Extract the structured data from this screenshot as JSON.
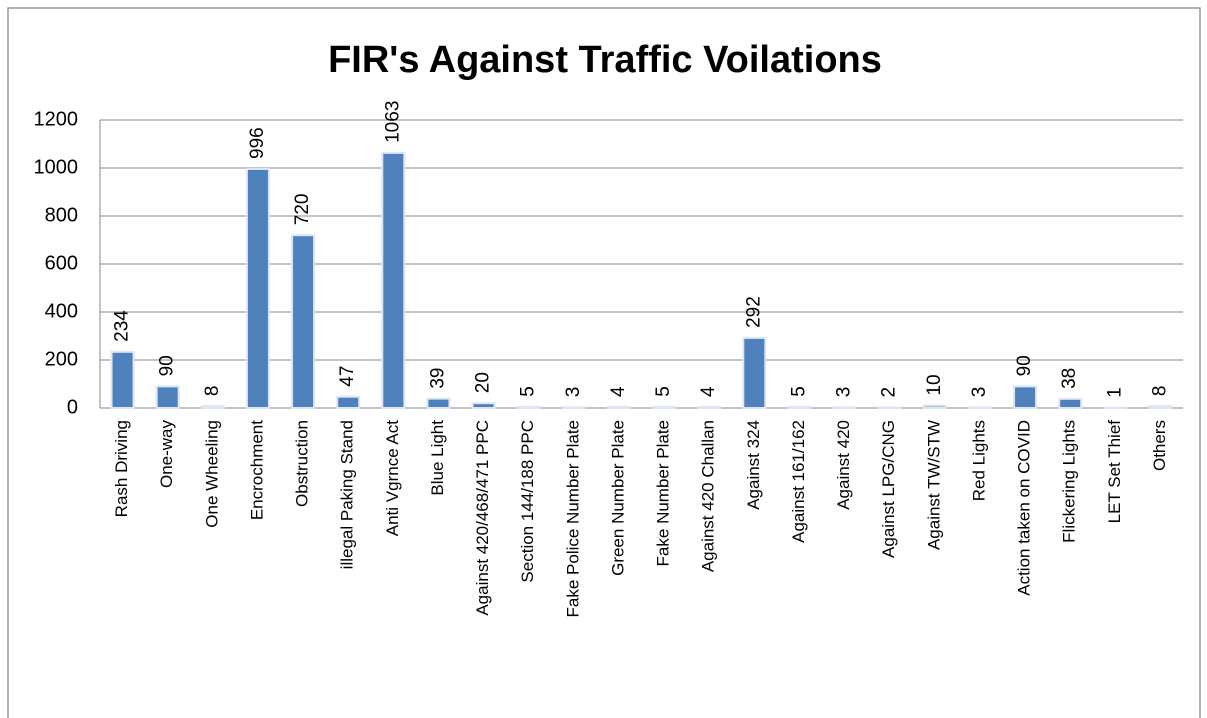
{
  "chart_data": {
    "type": "bar",
    "title": "FIR's Against Traffic Voilations",
    "categories": [
      "Rash Driving",
      "One-way",
      "One Wheeling",
      "Encrochment",
      "Obstruction",
      "illegal Paking Stand",
      "Anti Vgrnce Act",
      "Blue Light",
      "Against 420/468/471 PPC",
      "Section 144/188 PPC",
      "Fake Police Number Plate",
      "Green Number Plate",
      "Fake Number Plate",
      "Against 420 Challan",
      "Against 324",
      "Against 161/162",
      "Against 420",
      "Against LPG/CNG",
      "Against TW/STW",
      "Red Lights",
      "Action taken on COVID",
      "Flickering Lights",
      "LET Set Thief",
      "Others"
    ],
    "values": [
      234,
      90,
      8,
      996,
      720,
      47,
      1063,
      39,
      20,
      5,
      3,
      4,
      5,
      4,
      292,
      5,
      3,
      2,
      10,
      3,
      90,
      38,
      1,
      8
    ],
    "color": "#4f81bd",
    "ylim": [
      0,
      1200
    ],
    "yticks": [
      0,
      200,
      400,
      600,
      800,
      1000,
      1200
    ],
    "grid": true
  }
}
